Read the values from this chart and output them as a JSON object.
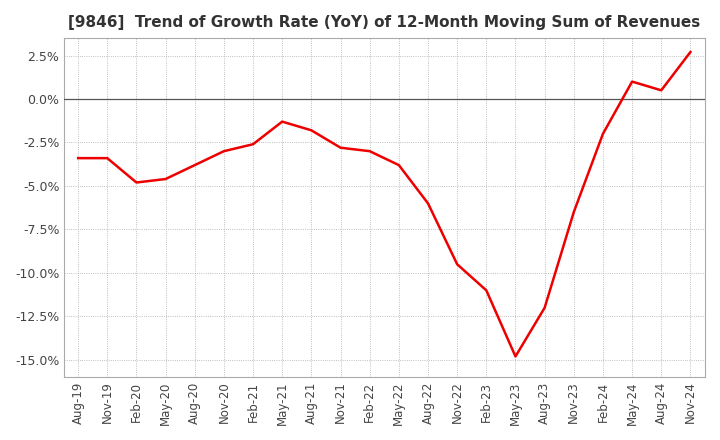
{
  "title": "[9846]  Trend of Growth Rate (YoY) of 12-Month Moving Sum of Revenues",
  "title_fontsize": 11,
  "title_color": "#333333",
  "line_color": "#ee0000",
  "background_color": "#ffffff",
  "grid_color": "#aaaaaa",
  "zero_line_color": "#555555",
  "ylim": [
    -0.16,
    0.035
  ],
  "yticks": [
    0.025,
    0.0,
    -0.025,
    -0.05,
    -0.075,
    -0.1,
    -0.125,
    -0.15
  ],
  "ytick_labels": [
    "2.5%",
    "0.0%",
    "-2.5%",
    "-5.0%",
    "-7.5%",
    "-10.0%",
    "-12.5%",
    "-15.0%"
  ],
  "dates": [
    "Aug-19",
    "Nov-19",
    "Feb-20",
    "May-20",
    "Aug-20",
    "Nov-20",
    "Feb-21",
    "May-21",
    "Aug-21",
    "Nov-21",
    "Feb-22",
    "May-22",
    "Aug-22",
    "Nov-22",
    "Feb-23",
    "May-23",
    "Aug-23",
    "Nov-23",
    "Feb-24",
    "May-24",
    "Aug-24",
    "Nov-24"
  ],
  "values": [
    -0.034,
    -0.034,
    -0.048,
    -0.046,
    -0.038,
    -0.03,
    -0.026,
    -0.013,
    -0.018,
    -0.028,
    -0.03,
    -0.038,
    -0.06,
    -0.095,
    -0.11,
    -0.148,
    -0.12,
    -0.065,
    -0.02,
    0.01,
    0.005,
    0.027
  ],
  "figsize": [
    7.2,
    4.4
  ],
  "dpi": 100
}
